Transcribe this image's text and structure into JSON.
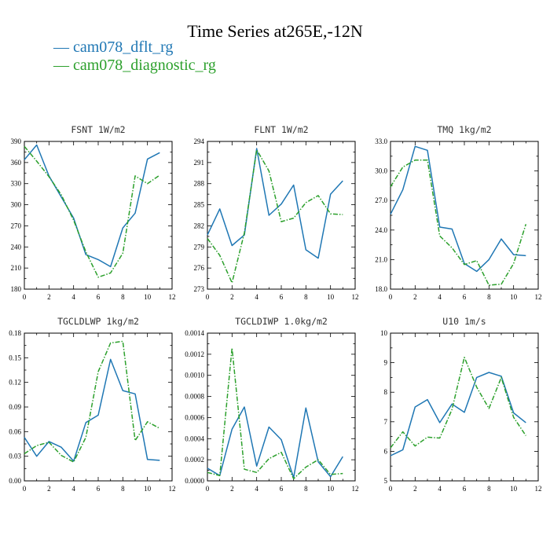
{
  "title": "Time Series at265E,-12N",
  "colors": {
    "dflt": "#1f77b4",
    "diagnostic": "#2ca02c"
  },
  "chart_data": [
    {
      "type": "line",
      "title": "FSNT  1W/m2",
      "x": [
        0,
        1,
        2,
        3,
        4,
        5,
        6,
        7,
        8,
        9,
        10,
        11
      ],
      "xlim": [
        0,
        12
      ],
      "xticks": [
        "0",
        "2",
        "4",
        "6",
        "8",
        "10",
        "12"
      ],
      "ylim": [
        180,
        390
      ],
      "yticks": [
        "180",
        "210",
        "240",
        "270",
        "300",
        "330",
        "360",
        "390"
      ],
      "series": [
        {
          "name": "cam078_dflt_rg",
          "values": [
            364,
            385,
            341,
            311,
            281,
            229,
            222,
            212,
            267,
            288,
            365,
            374
          ]
        },
        {
          "name": "cam078_diagnostic_rg",
          "values": [
            383,
            362,
            340,
            314,
            278,
            233,
            197,
            203,
            231,
            341,
            330,
            342
          ]
        }
      ]
    },
    {
      "type": "line",
      "title": "FLNT  1W/m2",
      "x": [
        0,
        1,
        2,
        3,
        4,
        5,
        6,
        7,
        8,
        9,
        10,
        11
      ],
      "xlim": [
        0,
        12
      ],
      "xticks": [
        "0",
        "2",
        "4",
        "6",
        "8",
        "10",
        "12"
      ],
      "ylim": [
        273,
        294
      ],
      "yticks": [
        "273",
        "276",
        "279",
        "282",
        "285",
        "288",
        "291",
        "294"
      ],
      "series": [
        {
          "name": "cam078_dflt_rg",
          "values": [
            280.7,
            284.4,
            279.2,
            280.7,
            293.0,
            283.5,
            285.1,
            287.8,
            278.6,
            277.4,
            286.5,
            288.4
          ]
        },
        {
          "name": "cam078_diagnostic_rg",
          "values": [
            280.2,
            277.8,
            273.9,
            281.0,
            292.8,
            289.8,
            282.6,
            283.1,
            285.3,
            286.3,
            283.7,
            283.6
          ]
        }
      ]
    },
    {
      "type": "line",
      "title": "TMQ  1kg/m2",
      "x": [
        0,
        1,
        2,
        3,
        4,
        5,
        6,
        7,
        8,
        9,
        10,
        11
      ],
      "xlim": [
        0,
        12
      ],
      "xticks": [
        "0",
        "2",
        "4",
        "6",
        "8",
        "10",
        "12"
      ],
      "ylim": [
        18.0,
        33.0
      ],
      "yticks": [
        "18.0",
        "21.0",
        "24.0",
        "27.0",
        "30.0",
        "33.0"
      ],
      "series": [
        {
          "name": "cam078_dflt_rg",
          "values": [
            25.6,
            28.1,
            32.5,
            32.1,
            24.3,
            24.1,
            20.6,
            19.8,
            21.0,
            23.1,
            21.5,
            21.4
          ]
        },
        {
          "name": "cam078_diagnostic_rg",
          "values": [
            28.4,
            30.4,
            31.1,
            31.1,
            23.4,
            22.2,
            20.5,
            20.9,
            18.4,
            18.5,
            20.6,
            24.6
          ]
        }
      ]
    },
    {
      "type": "line",
      "title": "TGCLDLWP  1kg/m2",
      "x": [
        0,
        1,
        2,
        3,
        4,
        5,
        6,
        7,
        8,
        9,
        10,
        11
      ],
      "xlim": [
        0,
        12
      ],
      "xticks": [
        "0",
        "2",
        "4",
        "6",
        "8",
        "10",
        "12"
      ],
      "ylim": [
        0.0,
        0.18
      ],
      "yticks": [
        "0.00",
        "0.03",
        "0.06",
        "0.09",
        "0.12",
        "0.15",
        "0.18"
      ],
      "series": [
        {
          "name": "cam078_dflt_rg",
          "values": [
            0.053,
            0.03,
            0.048,
            0.041,
            0.024,
            0.071,
            0.08,
            0.148,
            0.11,
            0.106,
            0.026,
            0.025
          ]
        },
        {
          "name": "cam078_diagnostic_rg",
          "values": [
            0.033,
            0.043,
            0.047,
            0.031,
            0.023,
            0.053,
            0.133,
            0.168,
            0.17,
            0.049,
            0.072,
            0.064
          ]
        }
      ]
    },
    {
      "type": "line",
      "title": "TGCLDIWP  1.0kg/m2",
      "x": [
        0,
        1,
        2,
        3,
        4,
        5,
        6,
        7,
        8,
        9,
        10,
        11
      ],
      "xlim": [
        0,
        12
      ],
      "xticks": [
        "0",
        "2",
        "4",
        "6",
        "8",
        "10",
        "12"
      ],
      "ylim": [
        0.0,
        0.0014
      ],
      "yticks": [
        "0.0000",
        "0.0002",
        "0.0004",
        "0.0006",
        "0.0008",
        "0.0010",
        "0.0012",
        "0.0014"
      ],
      "series": [
        {
          "name": "cam078_dflt_rg",
          "values": [
            0.00012,
            5e-05,
            0.00049,
            0.0007,
            0.00014,
            0.00051,
            0.00039,
            3e-05,
            0.00069,
            0.00018,
            4e-05,
            0.00023
          ]
        },
        {
          "name": "cam078_diagnostic_rg",
          "values": [
            8e-05,
            5e-05,
            0.00126,
            0.00011,
            8e-05,
            0.00021,
            0.00027,
            2e-05,
            0.00013,
            0.0002,
            6e-05,
            7e-05
          ]
        }
      ]
    },
    {
      "type": "line",
      "title": "U10  1m/s",
      "x": [
        0,
        1,
        2,
        3,
        4,
        5,
        6,
        7,
        8,
        9,
        10,
        11
      ],
      "xlim": [
        0,
        12
      ],
      "xticks": [
        "0",
        "2",
        "4",
        "6",
        "8",
        "10",
        "12"
      ],
      "ylim": [
        5,
        10
      ],
      "yticks": [
        "5",
        "6",
        "7",
        "8",
        "9",
        "10"
      ],
      "series": [
        {
          "name": "cam078_dflt_rg",
          "values": [
            5.85,
            6.05,
            7.5,
            7.75,
            6.97,
            7.6,
            7.32,
            8.5,
            8.67,
            8.54,
            7.3,
            6.97
          ]
        },
        {
          "name": "cam078_diagnostic_rg",
          "values": [
            6.12,
            6.66,
            6.18,
            6.48,
            6.45,
            7.42,
            9.18,
            8.17,
            7.45,
            8.5,
            7.15,
            6.53
          ]
        }
      ]
    }
  ]
}
